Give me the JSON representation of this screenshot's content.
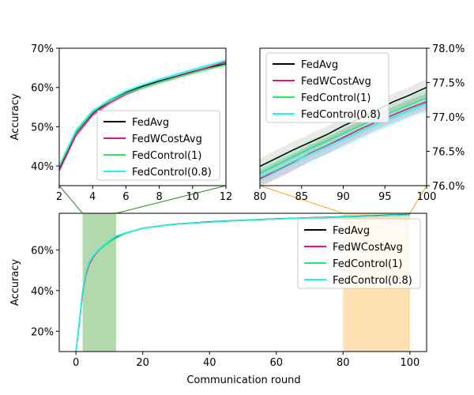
{
  "chart_data": [
    {
      "type": "line",
      "panel": "zoom-early",
      "ylabel": "Accuracy",
      "xlim": [
        2,
        12
      ],
      "ylim": [
        35,
        70
      ],
      "xticks": [
        2,
        4,
        6,
        8,
        10,
        12
      ],
      "yticks": [
        40,
        50,
        60,
        70
      ],
      "ytick_format": "percent",
      "yaxis_side": "left",
      "legend_position": "lower-right",
      "band": true,
      "x": [
        2,
        3,
        4,
        5,
        6,
        7,
        8,
        9,
        10,
        11,
        12
      ],
      "series": [
        {
          "name": "FedAvg",
          "color": "#000000",
          "values": [
            39.5,
            48.5,
            53.5,
            56.5,
            58.8,
            60.3,
            61.6,
            62.8,
            64.0,
            65.1,
            66.0
          ]
        },
        {
          "name": "FedWCostAvg",
          "color": "#e6157a",
          "values": [
            38.8,
            47.8,
            53.0,
            56.0,
            58.3,
            60.0,
            61.4,
            62.7,
            63.9,
            65.2,
            66.5
          ]
        },
        {
          "name": "FedControl(1)",
          "color": "#2ee86a",
          "values": [
            40.0,
            49.0,
            54.0,
            56.5,
            58.5,
            60.0,
            61.3,
            62.5,
            63.7,
            64.8,
            65.8
          ]
        },
        {
          "name": "FedControl(0.8)",
          "color": "#19f5f5",
          "values": [
            39.8,
            48.7,
            53.7,
            56.8,
            59.0,
            60.6,
            62.0,
            63.3,
            64.5,
            65.7,
            66.8
          ]
        }
      ]
    },
    {
      "type": "line",
      "panel": "zoom-late",
      "xlim": [
        80,
        100
      ],
      "ylim": [
        76.0,
        78.0
      ],
      "xticks": [
        80,
        85,
        90,
        95,
        100
      ],
      "yticks": [
        76.0,
        76.5,
        77.0,
        77.5,
        78.0
      ],
      "ytick_format": "percent",
      "yaxis_side": "right",
      "legend_position": "top-left",
      "band": true,
      "x": [
        80,
        82,
        84,
        86,
        88,
        90,
        92,
        94,
        96,
        98,
        100
      ],
      "series": [
        {
          "name": "FedAvg",
          "color": "#000000",
          "values": [
            76.28,
            76.4,
            76.52,
            76.63,
            76.74,
            76.87,
            76.98,
            77.1,
            77.22,
            77.32,
            77.43
          ]
        },
        {
          "name": "FedWCostAvg",
          "color": "#e6157a",
          "values": [
            76.1,
            76.22,
            76.34,
            76.47,
            76.58,
            76.7,
            76.82,
            76.93,
            77.03,
            77.13,
            77.22
          ]
        },
        {
          "name": "FedControl(1)",
          "color": "#2ee86a",
          "values": [
            76.18,
            76.3,
            76.42,
            76.54,
            76.65,
            76.76,
            76.87,
            76.98,
            77.08,
            77.18,
            77.28
          ]
        },
        {
          "name": "FedControl(0.8)",
          "color": "#19f5f5",
          "values": [
            76.12,
            76.23,
            76.35,
            76.46,
            76.57,
            76.68,
            76.79,
            76.9,
            77.0,
            77.1,
            77.2
          ]
        }
      ]
    },
    {
      "type": "line",
      "panel": "full",
      "xlabel": "Communication round",
      "ylabel": "Accuracy",
      "xlim": [
        -5,
        105
      ],
      "ylim": [
        10,
        78
      ],
      "xticks": [
        0,
        20,
        40,
        60,
        80,
        100
      ],
      "yticks": [
        20,
        40,
        60
      ],
      "ytick_format": "percent",
      "yaxis_side": "left",
      "legend_position": "upper-right",
      "highlights": [
        {
          "from": 2,
          "to": 12,
          "color": "#b2d9ab",
          "links_to": "zoom-early",
          "link_color": "#2a8a2a"
        },
        {
          "from": 80,
          "to": 100,
          "color": "#ffe0b0",
          "links_to": "zoom-late",
          "link_color": "#f5a623"
        }
      ],
      "x": [
        0,
        1,
        2,
        3,
        4,
        5,
        6,
        8,
        10,
        12,
        15,
        20,
        25,
        30,
        40,
        50,
        60,
        70,
        80,
        90,
        100
      ],
      "series": [
        {
          "name": "FedAvg",
          "color": "#000000",
          "values": [
            10,
            24,
            39.5,
            48.5,
            53.5,
            56.5,
            58.8,
            61.6,
            64.0,
            66.0,
            68.3,
            70.6,
            71.8,
            72.7,
            73.8,
            74.6,
            75.3,
            75.8,
            76.3,
            76.87,
            77.43
          ]
        },
        {
          "name": "FedWCostAvg",
          "color": "#e6157a",
          "values": [
            10,
            23.5,
            38.8,
            47.8,
            53.0,
            56.0,
            58.3,
            61.4,
            63.9,
            66.5,
            68.4,
            70.6,
            71.8,
            72.6,
            73.7,
            74.5,
            75.2,
            75.7,
            76.1,
            76.7,
            77.22
          ]
        },
        {
          "name": "FedControl(1)",
          "color": "#2ee86a",
          "values": [
            10,
            24.2,
            40.0,
            49.0,
            54.0,
            56.5,
            58.5,
            61.3,
            63.7,
            65.8,
            68.2,
            70.5,
            71.7,
            72.6,
            73.7,
            74.5,
            75.2,
            75.7,
            76.18,
            76.76,
            77.28
          ]
        },
        {
          "name": "FedControl(0.8)",
          "color": "#19f5f5",
          "values": [
            10,
            24.0,
            39.8,
            48.7,
            53.7,
            56.8,
            59.0,
            62.0,
            64.5,
            66.8,
            68.5,
            70.6,
            71.8,
            72.6,
            73.7,
            74.5,
            75.2,
            75.7,
            76.12,
            76.68,
            77.2
          ]
        }
      ]
    }
  ]
}
